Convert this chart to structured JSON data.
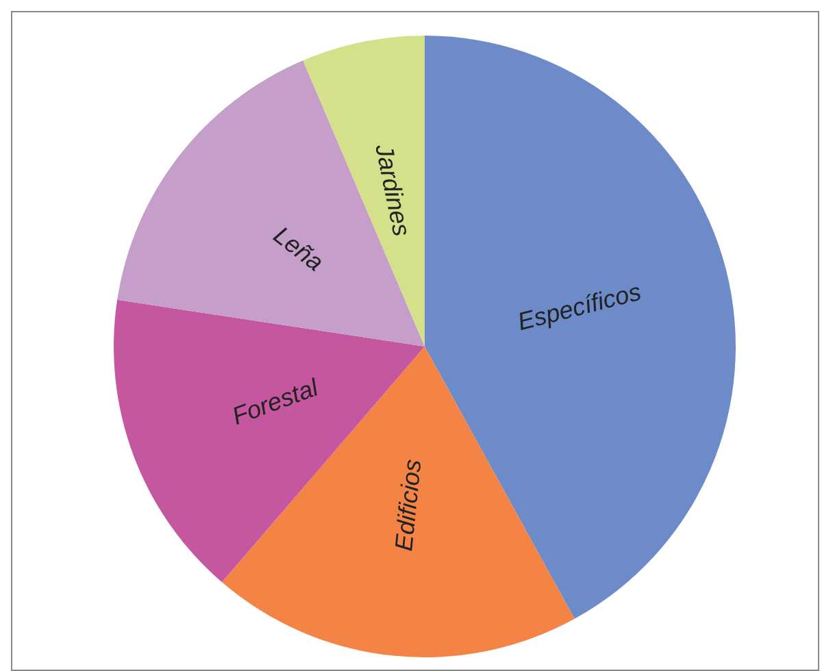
{
  "chart_data": {
    "type": "pie",
    "categories": [
      "Específicos",
      "Edificios",
      "Forestal",
      "Leña",
      "Jardines"
    ],
    "values": [
      42,
      19.3,
      16.1,
      16.2,
      6.4
    ],
    "colors": [
      "#6d8bc8",
      "#f48445",
      "#c4579f",
      "#c59fc9",
      "#d4e18a"
    ]
  }
}
